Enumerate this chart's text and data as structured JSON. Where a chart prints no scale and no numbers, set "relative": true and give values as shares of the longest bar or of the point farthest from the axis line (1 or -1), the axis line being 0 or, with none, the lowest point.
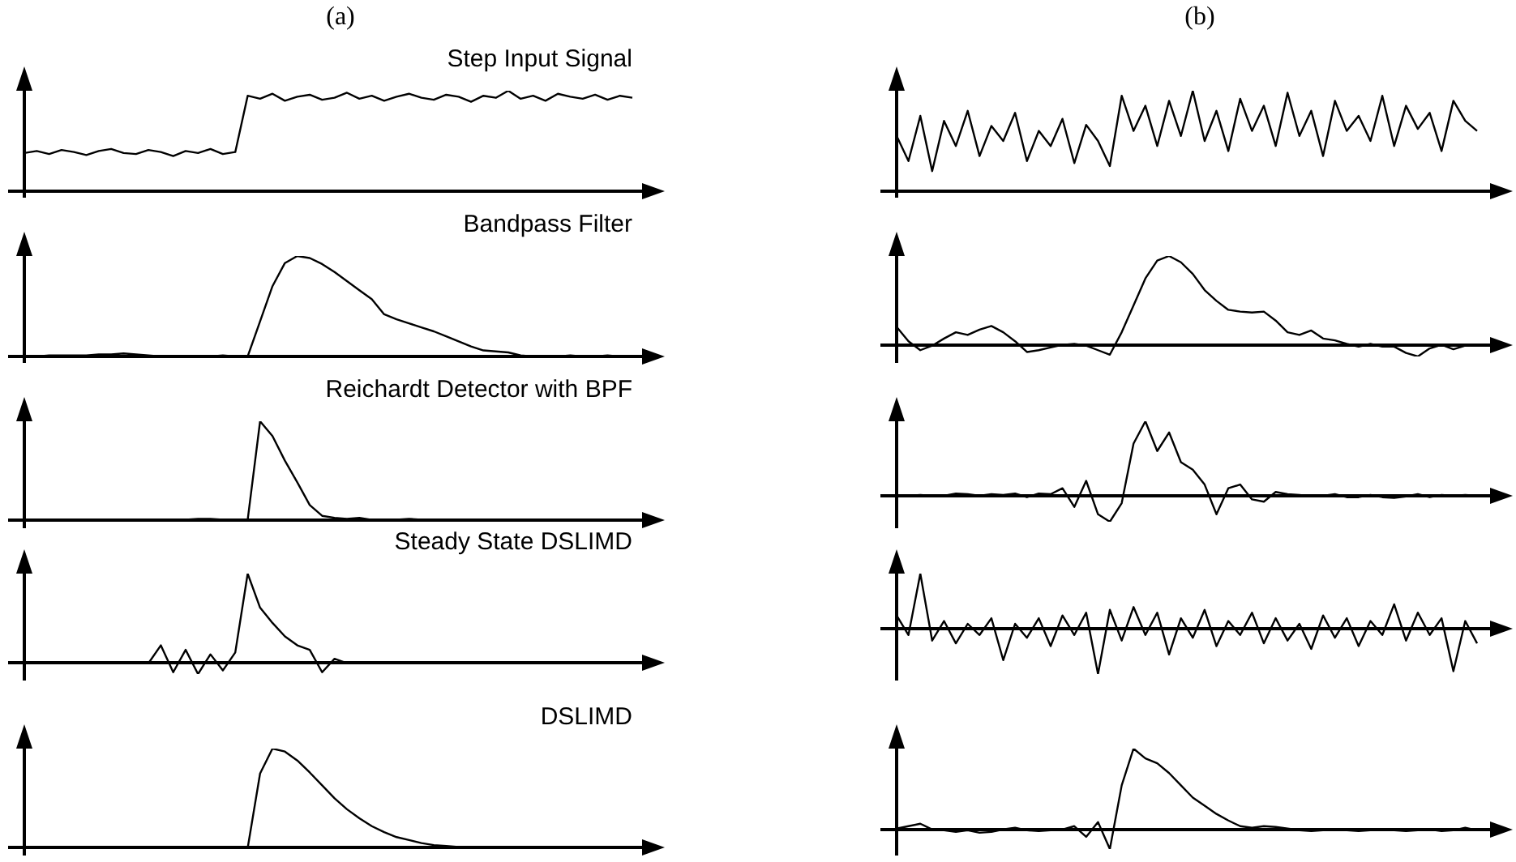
{
  "chart_data": [
    {
      "type": "line",
      "title": "(a)",
      "annotations": [
        "Step Input Signal"
      ],
      "relative": true,
      "tick_labels": false,
      "color": "#000000",
      "categories": [
        null,
        null,
        null,
        null,
        null,
        null,
        null,
        null,
        null,
        null,
        null,
        null,
        null,
        null,
        null,
        null,
        null,
        null,
        null,
        null,
        null,
        null,
        null,
        null,
        null,
        null,
        null,
        null,
        null,
        null,
        null,
        null,
        null,
        null,
        null,
        null,
        null,
        null,
        null,
        null,
        null,
        null,
        null,
        null,
        null,
        null,
        null,
        null,
        null,
        null
      ],
      "values": [
        0.38,
        0.4,
        0.37,
        0.41,
        0.39,
        0.36,
        0.4,
        0.42,
        0.38,
        0.37,
        0.41,
        0.39,
        0.35,
        0.4,
        0.38,
        0.42,
        0.37,
        0.39,
        0.95,
        0.92,
        0.97,
        0.9,
        0.94,
        0.96,
        0.91,
        0.93,
        0.98,
        0.92,
        0.95,
        0.9,
        0.94,
        0.97,
        0.93,
        0.91,
        0.96,
        0.94,
        0.89,
        0.95,
        0.93,
        1,
        0.92,
        0.95,
        0.9,
        0.97,
        0.94,
        0.92,
        0.96,
        0.91,
        0.95,
        0.93
      ]
    },
    {
      "type": "line",
      "title": "(b)",
      "relative": true,
      "tick_labels": false,
      "color": "#000000",
      "categories": [
        null,
        null,
        null,
        null,
        null,
        null,
        null,
        null,
        null,
        null,
        null,
        null,
        null,
        null,
        null,
        null,
        null,
        null,
        null,
        null,
        null,
        null,
        null,
        null,
        null,
        null,
        null,
        null,
        null,
        null,
        null,
        null,
        null,
        null,
        null,
        null,
        null,
        null,
        null,
        null,
        null,
        null,
        null,
        null,
        null,
        null,
        null,
        null,
        null,
        null
      ],
      "values": [
        0.55,
        0.3,
        0.75,
        0.2,
        0.7,
        0.45,
        0.8,
        0.35,
        0.65,
        0.5,
        0.78,
        0.3,
        0.6,
        0.45,
        0.72,
        0.28,
        0.66,
        0.5,
        0.25,
        0.95,
        0.6,
        0.85,
        0.45,
        0.9,
        0.55,
        1,
        0.5,
        0.8,
        0.4,
        0.92,
        0.6,
        0.85,
        0.45,
        0.98,
        0.55,
        0.8,
        0.35,
        0.9,
        0.6,
        0.75,
        0.5,
        0.95,
        0.45,
        0.85,
        0.62,
        0.78,
        0.4,
        0.9,
        0.7,
        0.6
      ]
    },
    {
      "type": "line",
      "annotations": [
        "Bandpass Filter"
      ],
      "relative": true,
      "tick_labels": false,
      "color": "#000000",
      "categories": [
        null,
        null,
        null,
        null,
        null,
        null,
        null,
        null,
        null,
        null,
        null,
        null,
        null,
        null,
        null,
        null,
        null,
        null,
        null,
        null,
        null,
        null,
        null,
        null,
        null,
        null,
        null,
        null,
        null,
        null,
        null,
        null,
        null,
        null,
        null,
        null,
        null,
        null,
        null,
        null,
        null,
        null,
        null,
        null,
        null,
        null,
        null,
        null,
        null,
        null
      ],
      "values": [
        0,
        0,
        0.01,
        0.01,
        0.01,
        0.01,
        0.02,
        0.02,
        0.03,
        0.02,
        0.01,
        0,
        0,
        0,
        0,
        0,
        0.01,
        0,
        0,
        0.35,
        0.7,
        0.93,
        1,
        0.98,
        0.92,
        0.84,
        0.75,
        0.66,
        0.57,
        0.42,
        0.37,
        0.33,
        0.29,
        0.25,
        0.2,
        0.15,
        0.1,
        0.06,
        0.05,
        0.04,
        0.01,
        0,
        0,
        0,
        0.01,
        0,
        0,
        0.01,
        0,
        0
      ]
    },
    {
      "type": "line",
      "relative": true,
      "tick_labels": false,
      "color": "#000000",
      "categories": [
        null,
        null,
        null,
        null,
        null,
        null,
        null,
        null,
        null,
        null,
        null,
        null,
        null,
        null,
        null,
        null,
        null,
        null,
        null,
        null,
        null,
        null,
        null,
        null,
        null,
        null,
        null,
        null,
        null,
        null,
        null,
        null,
        null,
        null,
        null,
        null,
        null,
        null,
        null,
        null,
        null,
        null,
        null,
        null,
        null,
        null,
        null,
        null,
        null,
        null
      ],
      "values": [
        0.21,
        0.05,
        -0.05,
        0,
        0.08,
        0.15,
        0.12,
        0.18,
        0.22,
        0.15,
        0.05,
        -0.07,
        -0.05,
        -0.02,
        0.01,
        0.02,
        0,
        -0.05,
        -0.1,
        0.15,
        0.45,
        0.75,
        0.95,
        1,
        0.93,
        0.8,
        0.62,
        0.5,
        0.4,
        0.38,
        0.37,
        0.38,
        0.28,
        0.15,
        0.12,
        0.17,
        0.08,
        0.06,
        0.02,
        -0.01,
        0.02,
        -0.01,
        -0.01,
        -0.08,
        -0.12,
        -0.03,
        0.01,
        -0.04,
        0,
        0.01
      ]
    },
    {
      "type": "line",
      "annotations": [
        "Reichardt Detector with BPF"
      ],
      "relative": true,
      "tick_labels": false,
      "color": "#000000",
      "categories": [
        null,
        null,
        null,
        null,
        null,
        null,
        null,
        null,
        null,
        null,
        null,
        null,
        null,
        null,
        null,
        null,
        null,
        null,
        null,
        null,
        null,
        null,
        null,
        null,
        null,
        null,
        null,
        null,
        null,
        null,
        null,
        null,
        null,
        null,
        null,
        null,
        null,
        null,
        null,
        null,
        null,
        null,
        null,
        null,
        null,
        null,
        null,
        null,
        null,
        null
      ],
      "values": [
        0,
        0,
        0,
        0,
        0,
        0,
        0,
        0,
        0,
        0,
        0,
        0,
        0,
        0,
        0.01,
        0.01,
        0,
        -0.02,
        0,
        1,
        0.85,
        0.6,
        0.38,
        0.15,
        0.04,
        0.02,
        0.01,
        0.02,
        0,
        0,
        0,
        0.01,
        0,
        0,
        0,
        0,
        0,
        0,
        0,
        0,
        0,
        0,
        0,
        0,
        0,
        0,
        0,
        0,
        0,
        0
      ]
    },
    {
      "type": "line",
      "relative": true,
      "tick_labels": false,
      "color": "#000000",
      "categories": [
        null,
        null,
        null,
        null,
        null,
        null,
        null,
        null,
        null,
        null,
        null,
        null,
        null,
        null,
        null,
        null,
        null,
        null,
        null,
        null,
        null,
        null,
        null,
        null,
        null,
        null,
        null,
        null,
        null,
        null,
        null,
        null,
        null,
        null,
        null,
        null,
        null,
        null,
        null,
        null,
        null,
        null,
        null,
        null,
        null,
        null,
        null,
        null,
        null,
        null
      ],
      "values": [
        0,
        0,
        0.01,
        0,
        0,
        0.03,
        0.02,
        0,
        0.02,
        0.01,
        0.03,
        -0.02,
        0.03,
        0.02,
        0.1,
        -0.15,
        0.2,
        -0.25,
        -0.35,
        -0.1,
        0.7,
        1,
        0.6,
        0.85,
        0.45,
        0.35,
        0.15,
        -0.25,
        0.1,
        0.15,
        -0.05,
        -0.08,
        0.05,
        0.02,
        0.01,
        -0.01,
        0,
        0.02,
        -0.02,
        -0.02,
        0.01,
        -0.02,
        -0.03,
        -0.01,
        0.02,
        -0.02,
        0.01,
        0,
        0.01,
        0
      ]
    },
    {
      "type": "line",
      "annotations": [
        "Steady State DSLIMD"
      ],
      "relative": true,
      "tick_labels": false,
      "color": "#000000",
      "categories": [
        null,
        null,
        null,
        null,
        null,
        null,
        null,
        null,
        null,
        null,
        null,
        null,
        null,
        null,
        null,
        null,
        null,
        null,
        null,
        null,
        null,
        null,
        null,
        null,
        null,
        null,
        null,
        null,
        null,
        null,
        null,
        null,
        null,
        null,
        null,
        null,
        null,
        null,
        null,
        null,
        null,
        null,
        null,
        null,
        null,
        null,
        null,
        null,
        null,
        null
      ],
      "values": [
        0,
        0,
        0,
        0,
        0,
        0,
        0,
        0,
        0,
        0,
        0,
        0.2,
        -0.1,
        0.15,
        -0.12,
        0.1,
        -0.08,
        0.12,
        1,
        0.62,
        0.45,
        0.3,
        0.2,
        0.15,
        -0.1,
        0.05,
        0,
        0,
        0,
        0,
        0,
        0,
        0,
        0,
        0,
        0,
        0,
        0,
        0,
        0,
        0,
        0,
        0,
        0,
        0,
        0,
        0,
        0,
        0,
        0
      ]
    },
    {
      "type": "line",
      "relative": true,
      "tick_labels": false,
      "color": "#000000",
      "categories": [
        null,
        null,
        null,
        null,
        null,
        null,
        null,
        null,
        null,
        null,
        null,
        null,
        null,
        null,
        null,
        null,
        null,
        null,
        null,
        null,
        null,
        null,
        null,
        null,
        null,
        null,
        null,
        null,
        null,
        null,
        null,
        null,
        null,
        null,
        null,
        null,
        null,
        null,
        null,
        null,
        null,
        null,
        null,
        null,
        null,
        null,
        null,
        null,
        null,
        null
      ],
      "values": [
        0.25,
        -0.1,
        1,
        -0.2,
        0.15,
        -0.25,
        0.1,
        -0.1,
        0.2,
        -0.55,
        0.1,
        -0.15,
        0.2,
        -0.3,
        0.25,
        -0.1,
        0.3,
        -0.8,
        0.35,
        -0.2,
        0.4,
        -0.1,
        0.3,
        -0.45,
        0.2,
        -0.15,
        0.35,
        -0.3,
        0.15,
        -0.1,
        0.3,
        -0.25,
        0.2,
        -0.2,
        0.1,
        -0.35,
        0.25,
        -0.15,
        0.2,
        -0.3,
        0.15,
        -0.1,
        0.45,
        -0.2,
        0.3,
        -0.1,
        0.2,
        -0.75,
        0.15,
        -0.25
      ]
    },
    {
      "type": "line",
      "annotations": [
        "DSLIMD"
      ],
      "relative": true,
      "tick_labels": false,
      "color": "#000000",
      "categories": [
        null,
        null,
        null,
        null,
        null,
        null,
        null,
        null,
        null,
        null,
        null,
        null,
        null,
        null,
        null,
        null,
        null,
        null,
        null,
        null,
        null,
        null,
        null,
        null,
        null,
        null,
        null,
        null,
        null,
        null,
        null,
        null,
        null,
        null,
        null,
        null,
        null,
        null,
        null,
        null,
        null,
        null,
        null,
        null,
        null,
        null,
        null,
        null,
        null,
        null
      ],
      "values": [
        0,
        0,
        0,
        0,
        0,
        0,
        0,
        0,
        0,
        0,
        0,
        0,
        0,
        0,
        0,
        0,
        0,
        -0.01,
        0,
        0.75,
        1,
        0.97,
        0.88,
        0.76,
        0.63,
        0.5,
        0.39,
        0.3,
        0.22,
        0.16,
        0.11,
        0.08,
        0.05,
        0.03,
        0.02,
        0.01,
        0,
        0,
        0,
        0,
        0,
        0,
        0,
        0,
        0,
        0,
        0,
        0,
        0,
        0
      ]
    },
    {
      "type": "line",
      "relative": true,
      "tick_labels": false,
      "color": "#000000",
      "categories": [
        null,
        null,
        null,
        null,
        null,
        null,
        null,
        null,
        null,
        null,
        null,
        null,
        null,
        null,
        null,
        null,
        null,
        null,
        null,
        null,
        null,
        null,
        null,
        null,
        null,
        null,
        null,
        null,
        null,
        null,
        null,
        null,
        null,
        null,
        null,
        null,
        null,
        null,
        null,
        null,
        null,
        null,
        null,
        null,
        null,
        null,
        null,
        null,
        null,
        null
      ],
      "values": [
        0.02,
        0.05,
        0.08,
        0.01,
        0,
        -0.02,
        0,
        -0.03,
        -0.02,
        0.01,
        0.03,
        0,
        -0.01,
        0,
        0.01,
        0.05,
        -0.08,
        0.1,
        -0.23,
        0.55,
        1,
        0.88,
        0.82,
        0.7,
        0.55,
        0.4,
        0.3,
        0.2,
        0.12,
        0.05,
        0.03,
        0.05,
        0.04,
        0.02,
        0,
        -0.01,
        0,
        0.01,
        0,
        -0.01,
        0,
        0.01,
        0,
        -0.01,
        0,
        0.01,
        -0.01,
        0,
        0.03,
        0
      ]
    }
  ]
}
